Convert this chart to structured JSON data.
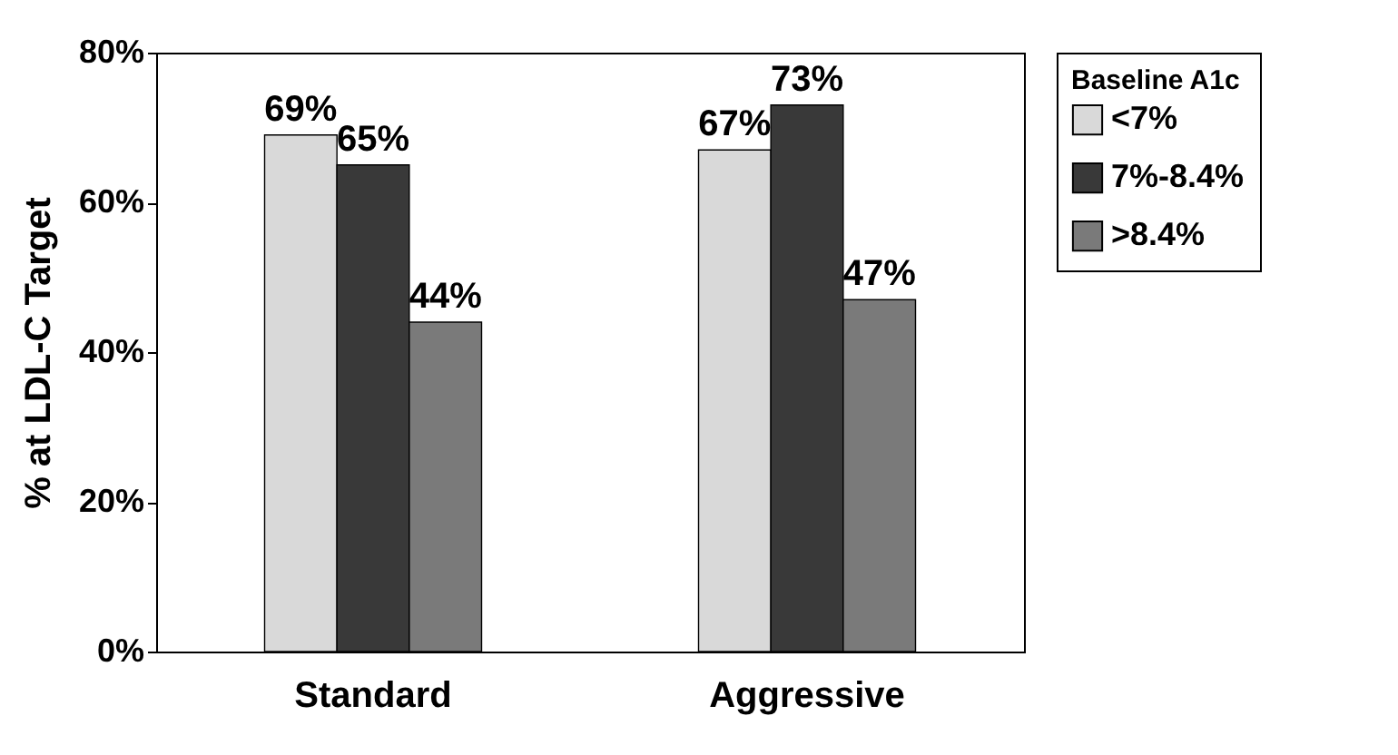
{
  "chart_data": {
    "type": "bar",
    "ylabel": "% at LDL-C Target",
    "legend_title": "Baseline A1c",
    "legend": "right",
    "categories": [
      "Standard",
      "Aggressive"
    ],
    "series": [
      {
        "name": "<7%",
        "color": "#d9d9d9",
        "values": [
          69,
          67
        ],
        "value_labels": [
          "69%",
          "67%"
        ]
      },
      {
        "name": "7%-8.4%",
        "color": "#393939",
        "values": [
          65,
          73
        ],
        "value_labels": [
          "65%",
          "73%"
        ]
      },
      {
        "name": ">8.4%",
        "color": "#7a7a7a",
        "values": [
          44,
          47
        ],
        "value_labels": [
          "44%",
          "47%"
        ]
      }
    ],
    "ylim": [
      0,
      80
    ],
    "yticks": [
      {
        "value": 0,
        "label": "0%"
      },
      {
        "value": 20,
        "label": "20%"
      },
      {
        "value": 40,
        "label": "40%"
      },
      {
        "value": 60,
        "label": "60%"
      },
      {
        "value": 80,
        "label": "80%"
      }
    ],
    "grid": false
  }
}
